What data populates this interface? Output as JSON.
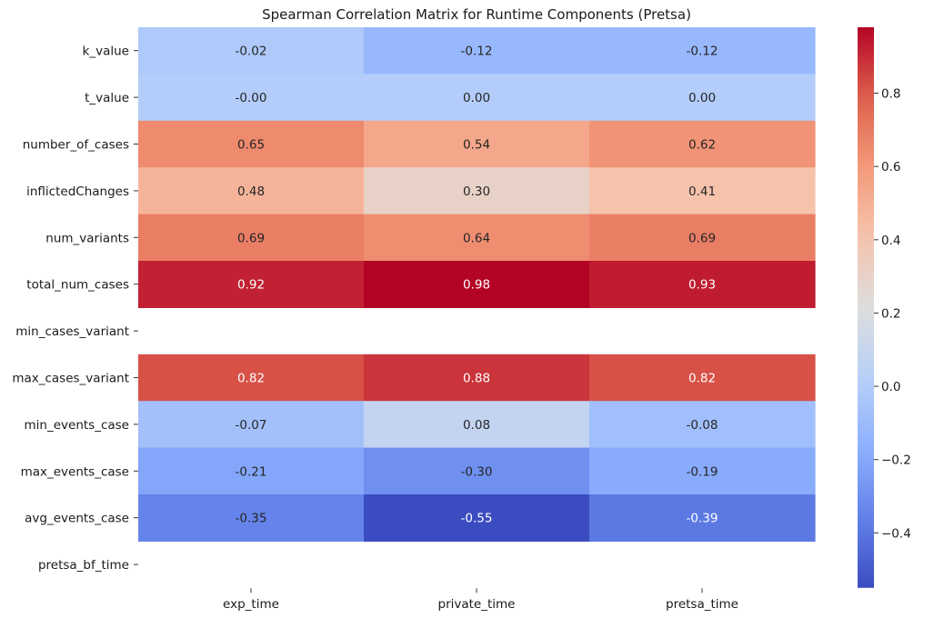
{
  "chart_data": {
    "type": "heatmap",
    "title": "Spearman Correlation Matrix for Runtime Components (Pretsa)",
    "columns": [
      "exp_time",
      "private_time",
      "pretsa_time"
    ],
    "rows": [
      "k_value",
      "t_value",
      "number_of_cases",
      "inflictedChanges",
      "num_variants",
      "total_num_cases",
      "min_cases_variant",
      "max_cases_variant",
      "min_events_case",
      "max_events_case",
      "avg_events_case",
      "pretsa_bf_time"
    ],
    "values": [
      [
        -0.02,
        -0.12,
        -0.12
      ],
      [
        -0.0,
        0.0,
        0.0
      ],
      [
        0.65,
        0.54,
        0.62
      ],
      [
        0.48,
        0.3,
        0.41
      ],
      [
        0.69,
        0.64,
        0.69
      ],
      [
        0.92,
        0.98,
        0.93
      ],
      [
        null,
        null,
        null
      ],
      [
        0.82,
        0.88,
        0.82
      ],
      [
        -0.07,
        0.08,
        -0.08
      ],
      [
        -0.21,
        -0.3,
        -0.19
      ],
      [
        -0.35,
        -0.55,
        -0.39
      ],
      [
        null,
        null,
        null
      ]
    ],
    "cell_labels": [
      [
        "-0.02",
        "-0.12",
        "-0.12"
      ],
      [
        "-0.00",
        "0.00",
        "0.00"
      ],
      [
        "0.65",
        "0.54",
        "0.62"
      ],
      [
        "0.48",
        "0.30",
        "0.41"
      ],
      [
        "0.69",
        "0.64",
        "0.69"
      ],
      [
        "0.92",
        "0.98",
        "0.93"
      ],
      [
        "",
        "",
        ""
      ],
      [
        "0.82",
        "0.88",
        "0.82"
      ],
      [
        "-0.07",
        "0.08",
        "-0.08"
      ],
      [
        "-0.21",
        "-0.30",
        "-0.19"
      ],
      [
        "-0.35",
        "-0.55",
        "-0.39"
      ],
      [
        "",
        "",
        ""
      ]
    ],
    "colorbar": {
      "colormap": "coolwarm",
      "range": [
        -0.55,
        0.98
      ],
      "ticks": [
        -0.4,
        -0.2,
        0.0,
        0.2,
        0.4,
        0.6,
        0.8
      ],
      "tick_labels": [
        "−0.4",
        "−0.2",
        "0.0",
        "0.2",
        "0.4",
        "0.6",
        "0.8"
      ]
    },
    "grid": false
  }
}
